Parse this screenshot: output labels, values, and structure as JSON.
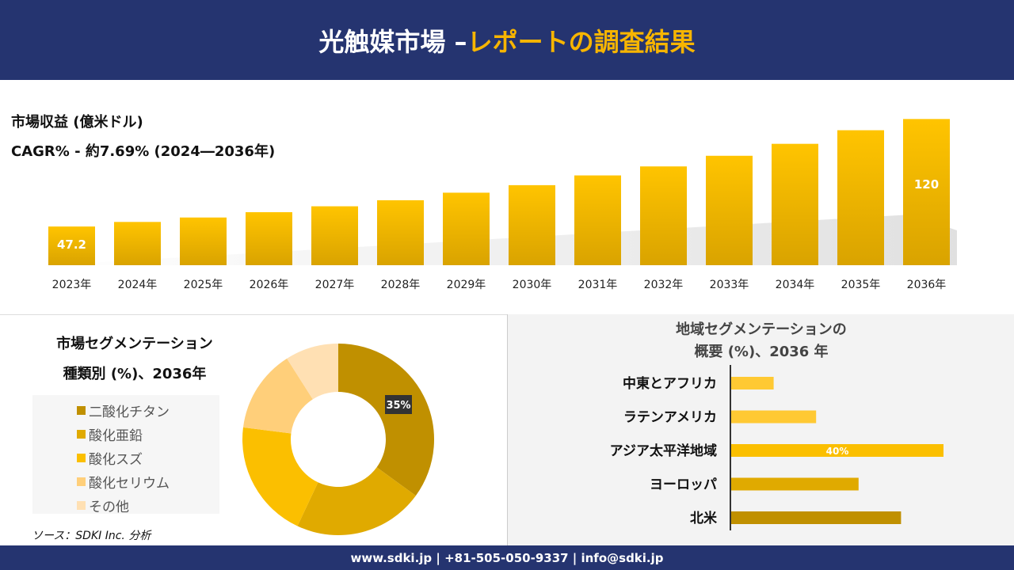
{
  "header": {
    "title_main": "光触媒市場 –",
    "title_accent": "レポートの調査結果"
  },
  "revenue": {
    "label": "市場収益 (億米ドル)",
    "cagr": "CAGR% - 約7.69% (2024―2036年)"
  },
  "chart_data": [
    {
      "type": "bar",
      "categories": [
        "2023年",
        "2024年",
        "2025年",
        "2026年",
        "2027年",
        "2028年",
        "2029年",
        "2030年",
        "2031年",
        "2032年",
        "2033年",
        "2034年",
        "2035年",
        "2036年"
      ],
      "values": [
        47.2,
        50.3,
        53.3,
        56.9,
        60.9,
        65.0,
        70.1,
        75.2,
        81.8,
        87.9,
        95.1,
        103.2,
        112.4,
        120
      ],
      "data_labels": {
        "0": "47.2",
        "13": "120"
      },
      "ylim": [
        21,
        125
      ],
      "grid": false,
      "color": "#f2b800"
    },
    {
      "type": "pie",
      "title": "市場セグメンテーション 種類別 (%)、2036年",
      "donut": true,
      "categories": [
        "二酸化チタン",
        "酸化亜鉛",
        "酸化スズ",
        "酸化セリウム",
        "その他"
      ],
      "values": [
        35,
        22,
        20,
        14,
        9
      ],
      "colors": [
        "#c09000",
        "#e0aa00",
        "#fbbf00",
        "#ffcf7a",
        "#ffe0b3"
      ],
      "data_labels": {
        "0": "35%"
      },
      "legend": "left"
    },
    {
      "type": "bar",
      "orientation": "horizontal",
      "title": "地域セグメンテーションの 概要 (%)、2036 年",
      "categories": [
        "中東とアフリカ",
        "ラテンアメリカ",
        "アジア太平洋地域",
        "ヨーロッパ",
        "北米"
      ],
      "values": [
        8,
        16,
        40,
        24,
        32
      ],
      "colors": [
        "#ffc933",
        "#ffc933",
        "#fbbf00",
        "#e0aa00",
        "#c09000"
      ],
      "data_labels": {
        "2": "40%"
      }
    }
  ],
  "segment": {
    "title1": "市場セグメンテーション",
    "title2": "種類別 (%)、2036年"
  },
  "region": {
    "title1": "地域セグメンテーションの",
    "title2": "概要 (%)、2036 年"
  },
  "source": "ソース：SDKI Inc. 分析",
  "footer": "www.sdki.jp | +81-505-050-9337 | info@sdki.jp"
}
